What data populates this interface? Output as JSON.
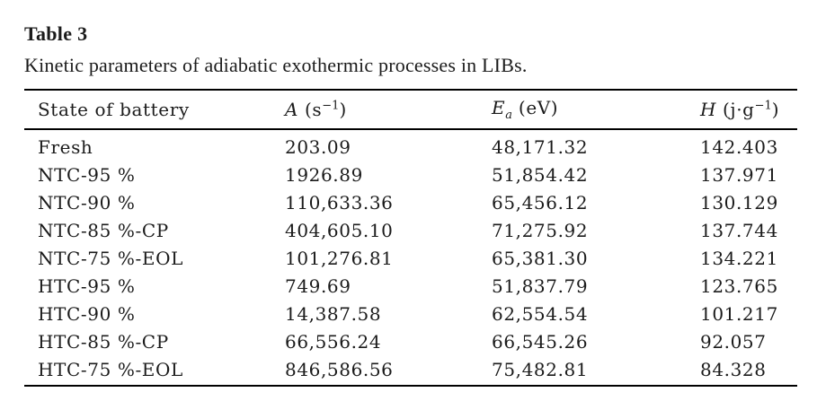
{
  "page": {
    "background_color": "#ffffff",
    "text_color": "#1b1b1b",
    "rule_color": "#000000"
  },
  "table": {
    "label": "Table 3",
    "caption": "Kinetic parameters of adiabatic exothermic processes in LIBs.",
    "columns": [
      {
        "key": "state",
        "label": "State of battery"
      },
      {
        "key": "a",
        "symbol": "A",
        "unit_open": " (s",
        "sup": "−1",
        "unit_close": ")"
      },
      {
        "key": "ea",
        "symbol": "E",
        "sub": "a",
        "unit": " (eV)"
      },
      {
        "key": "h",
        "symbol": "H",
        "unit_open": " (j·g",
        "sup": "−1",
        "unit_close": ")"
      }
    ],
    "rows": [
      {
        "state": "Fresh",
        "a": "203.09",
        "ea": "48,171.32",
        "h": "142.403"
      },
      {
        "state": "NTC-95 %",
        "a": "1926.89",
        "ea": "51,854.42",
        "h": "137.971"
      },
      {
        "state": "NTC-90 %",
        "a": "110,633.36",
        "ea": "65,456.12",
        "h": "130.129"
      },
      {
        "state": "NTC-85 %-CP",
        "a": "404,605.10",
        "ea": "71,275.92",
        "h": "137.744"
      },
      {
        "state": "NTC-75 %-EOL",
        "a": "101,276.81",
        "ea": "65,381.30",
        "h": "134.221"
      },
      {
        "state": "HTC-95 %",
        "a": "749.69",
        "ea": "51,837.79",
        "h": "123.765"
      },
      {
        "state": "HTC-90 %",
        "a": "14,387.58",
        "ea": "62,554.54",
        "h": "101.217"
      },
      {
        "state": "HTC-85 %-CP",
        "a": "66,556.24",
        "ea": "66,545.26",
        "h": "92.057"
      },
      {
        "state": "HTC-75 %-EOL",
        "a": "846,586.56",
        "ea": "75,482.81",
        "h": "84.328"
      }
    ]
  }
}
